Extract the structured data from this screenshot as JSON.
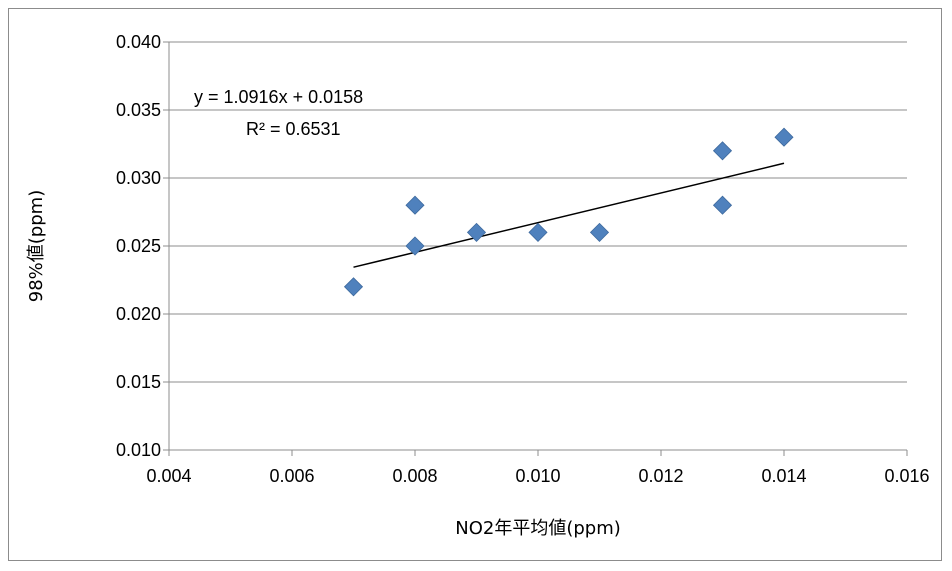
{
  "chart_data": {
    "type": "scatter",
    "title": "",
    "xlabel": "NO2年平均値(ppm)",
    "ylabel": "98%値(ppm)",
    "xlim": [
      0.004,
      0.016
    ],
    "ylim": [
      0.01,
      0.04
    ],
    "x_ticks": [
      "0.004",
      "0.006",
      "0.008",
      "0.010",
      "0.012",
      "0.014",
      "0.016"
    ],
    "y_ticks": [
      "0.010",
      "0.015",
      "0.020",
      "0.025",
      "0.030",
      "0.035",
      "0.040"
    ],
    "grid": "horizontal",
    "legend": "none",
    "marker_color": "#4F81BD",
    "trendline_color": "#000000",
    "points": [
      {
        "x": 0.007,
        "y": 0.022
      },
      {
        "x": 0.008,
        "y": 0.025
      },
      {
        "x": 0.008,
        "y": 0.028
      },
      {
        "x": 0.009,
        "y": 0.026
      },
      {
        "x": 0.01,
        "y": 0.026
      },
      {
        "x": 0.011,
        "y": 0.026
      },
      {
        "x": 0.013,
        "y": 0.028
      },
      {
        "x": 0.013,
        "y": 0.032
      },
      {
        "x": 0.014,
        "y": 0.033
      }
    ],
    "trendline": {
      "type": "linear",
      "slope": 1.0916,
      "intercept": 0.0158,
      "x_range": [
        0.007,
        0.014
      ],
      "equation_label": "y = 1.0916x + 0.0158",
      "r2_label": "R² = 0.6531"
    }
  }
}
